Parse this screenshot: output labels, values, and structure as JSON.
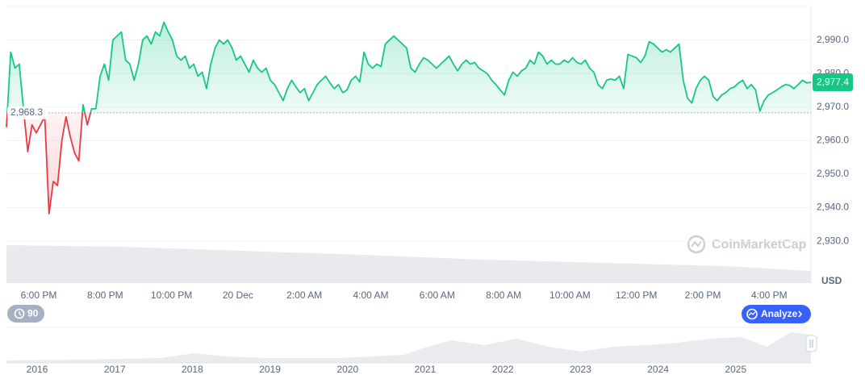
{
  "chart_data": {
    "type": "line",
    "up_color": "#16c784",
    "down_color": "#ea3943",
    "ylim": [
      2918,
      3000
    ],
    "yticks": [
      {
        "value": 2990,
        "label": "2,990.0"
      },
      {
        "value": 2980,
        "label": "2,980.0"
      },
      {
        "value": 2970,
        "label": "2,970.0"
      },
      {
        "value": 2960,
        "label": "2,960.0"
      },
      {
        "value": 2950,
        "label": "2,950.0"
      },
      {
        "value": 2940,
        "label": "2,940.0"
      },
      {
        "value": 2930,
        "label": "2,930.0"
      }
    ],
    "grid": true,
    "y_unit": "USD",
    "baseline": {
      "value": 2968.3,
      "label": "2,968.3"
    },
    "current_price": {
      "value": 2977.4,
      "label": "2,977.4"
    },
    "x_tick_labels": [
      "6:00 PM",
      "8:00 PM",
      "10:00 PM",
      "20 Dec",
      "2:00 AM",
      "4:00 AM",
      "6:00 AM",
      "8:00 AM",
      "10:00 AM",
      "12:00 PM",
      "2:00 PM",
      "4:00 PM"
    ],
    "values": [
      2964.0,
      2986.4,
      2981.6,
      2982.8,
      2969.5,
      2956.7,
      2964.7,
      2962.3,
      2964.7,
      2967.1,
      2938.2,
      2947.8,
      2946.6,
      2959.9,
      2967.1,
      2961.1,
      2956.3,
      2953.9,
      2970.7,
      2964.7,
      2969.5,
      2969.5,
      2979.2,
      2982.8,
      2978.0,
      2990.0,
      2991.2,
      2992.4,
      2984.0,
      2982.8,
      2978.0,
      2982.8,
      2990.0,
      2991.2,
      2988.8,
      2992.4,
      2991.2,
      2995.3,
      2992.4,
      2990.0,
      2985.2,
      2984.0,
      2985.2,
      2981.6,
      2982.8,
      2979.2,
      2980.4,
      2975.5,
      2982.8,
      2987.6,
      2990.0,
      2988.8,
      2990.0,
      2987.6,
      2984.0,
      2985.2,
      2982.8,
      2980.4,
      2984.0,
      2981.6,
      2980.4,
      2981.6,
      2978.0,
      2976.7,
      2974.3,
      2971.9,
      2975.5,
      2978.0,
      2976.0,
      2974.3,
      2975.5,
      2971.9,
      2974.3,
      2976.7,
      2978.0,
      2979.2,
      2977.2,
      2975.5,
      2976.7,
      2974.3,
      2975.1,
      2978.0,
      2979.2,
      2977.5,
      2986.4,
      2982.8,
      2981.6,
      2982.8,
      2982.1,
      2988.8,
      2990.0,
      2991.2,
      2990.0,
      2988.8,
      2987.6,
      2981.6,
      2980.4,
      2982.8,
      2984.7,
      2984.0,
      2982.8,
      2981.6,
      2982.8,
      2984.0,
      2985.2,
      2982.8,
      2980.8,
      2982.8,
      2984.0,
      2982.8,
      2983.3,
      2981.6,
      2980.8,
      2979.9,
      2978.0,
      2976.7,
      2975.1,
      2973.6,
      2978.0,
      2980.4,
      2979.2,
      2980.8,
      2981.6,
      2984.0,
      2982.8,
      2986.4,
      2985.2,
      2982.8,
      2984.0,
      2982.8,
      2982.8,
      2984.0,
      2983.3,
      2984.7,
      2983.3,
      2982.8,
      2984.0,
      2981.6,
      2980.4,
      2976.7,
      2975.5,
      2978.0,
      2978.4,
      2978.0,
      2979.2,
      2975.5,
      2985.7,
      2985.2,
      2984.7,
      2983.3,
      2985.2,
      2989.5,
      2988.8,
      2987.6,
      2986.4,
      2987.1,
      2986.4,
      2987.6,
      2988.8,
      2978.0,
      2972.7,
      2971.2,
      2975.5,
      2978.0,
      2979.2,
      2978.0,
      2973.2,
      2971.9,
      2973.6,
      2974.3,
      2975.5,
      2976.0,
      2977.2,
      2978.0,
      2975.5,
      2976.7,
      2975.1,
      2968.8,
      2971.9,
      2973.6,
      2974.3,
      2975.1,
      2976.0,
      2976.7,
      2976.5,
      2975.5,
      2976.7,
      2978.0,
      2977.2,
      2977.4
    ],
    "watermark": "CoinMarketCap",
    "range_button": "90",
    "analyze_button": "Analyze",
    "navigator_labels": [
      "2016",
      "2017",
      "2018",
      "2019",
      "2020",
      "2021",
      "2022",
      "2023",
      "2024",
      "2025"
    ]
  }
}
